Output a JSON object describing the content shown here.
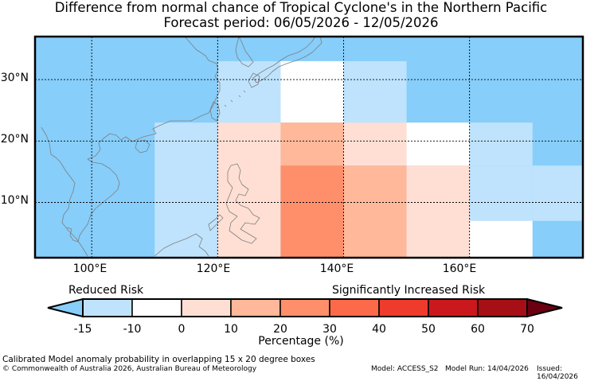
{
  "title": {
    "line1": "Difference from normal chance of Tropical Cyclone's in the Northern Pacific",
    "line2": "Forecast period: 06/05/2026 - 12/05/2026"
  },
  "axes": {
    "lat_ticks": [
      {
        "label": "30°N",
        "value": 30
      },
      {
        "label": "20°N",
        "value": 20
      },
      {
        "label": "10°N",
        "value": 10
      }
    ],
    "lon_ticks": [
      {
        "label": "100°E",
        "value": 100
      },
      {
        "label": "120°E",
        "value": 120
      },
      {
        "label": "140°E",
        "value": 140
      },
      {
        "label": "160°E",
        "value": 160
      }
    ],
    "lon_range": [
      91,
      178
    ],
    "lat_range": [
      1,
      37
    ]
  },
  "colors": {
    "background": "#87cefa",
    "land_outline": "#7f7f7f",
    "grid": "#000000"
  },
  "cells": [
    {
      "lon": [
        110,
        120
      ],
      "lat": [
        1,
        23
      ],
      "color": "#bfe3fd"
    },
    {
      "lon": [
        120,
        130
      ],
      "lat": [
        23,
        33
      ],
      "color": "#bfe3fd"
    },
    {
      "lon": [
        120,
        130
      ],
      "lat": [
        1,
        23
      ],
      "color": "#ffdfd4"
    },
    {
      "lon": [
        130,
        140
      ],
      "lat": [
        23,
        33
      ],
      "color": "#ffffff"
    },
    {
      "lon": [
        130,
        140
      ],
      "lat": [
        16,
        23
      ],
      "color": "#ffb89a"
    },
    {
      "lon": [
        130,
        140
      ],
      "lat": [
        1,
        16
      ],
      "color": "#ff8f6b"
    },
    {
      "lon": [
        140,
        150
      ],
      "lat": [
        23,
        33
      ],
      "color": "#bfe3fd"
    },
    {
      "lon": [
        140,
        150
      ],
      "lat": [
        16,
        23
      ],
      "color": "#ffdfd4"
    },
    {
      "lon": [
        140,
        150
      ],
      "lat": [
        1,
        16
      ],
      "color": "#ffb89a"
    },
    {
      "lon": [
        150,
        160
      ],
      "lat": [
        16,
        23
      ],
      "color": "#ffffff"
    },
    {
      "lon": [
        150,
        160
      ],
      "lat": [
        1,
        16
      ],
      "color": "#ffdfd4"
    },
    {
      "lon": [
        160,
        170
      ],
      "lat": [
        16,
        23
      ],
      "color": "#bfe3fd"
    },
    {
      "lon": [
        170,
        178
      ],
      "lat": [
        7,
        16
      ],
      "color": "#bfe3fd"
    },
    {
      "lon": [
        160,
        170
      ],
      "lat": [
        7,
        16
      ],
      "color": "#bfe3fd"
    },
    {
      "lon": [
        160,
        170
      ],
      "lat": [
        1,
        7
      ],
      "color": "#ffffff"
    }
  ],
  "legend": {
    "reduced_label": "Reduced Risk",
    "increased_label": "Significantly Increased Risk",
    "title": "Percentage (%)",
    "ticks": [
      "-15",
      "-10",
      "0",
      "10",
      "20",
      "30",
      "40",
      "50",
      "60",
      "70"
    ],
    "low_extend_color": "#87cefa",
    "high_extend_color": "#6b0010",
    "colors": [
      "#bfe3fd",
      "#ffffff",
      "#ffdfd4",
      "#ffb89a",
      "#ff8f6b",
      "#fd6a4a",
      "#ef3b2c",
      "#cb181d",
      "#a50f15"
    ]
  },
  "footer": {
    "line1": "Calibrated Model anomaly probability in overlapping 15 x 20 degree boxes",
    "copyright": "© Commonwealth of Australia 2026, Australian Bureau of Meteorology",
    "model": "Model: ACCESS_S2",
    "model_run": "Model Run: 14/04/2026",
    "issued": "Issued: 16/04/2026"
  }
}
